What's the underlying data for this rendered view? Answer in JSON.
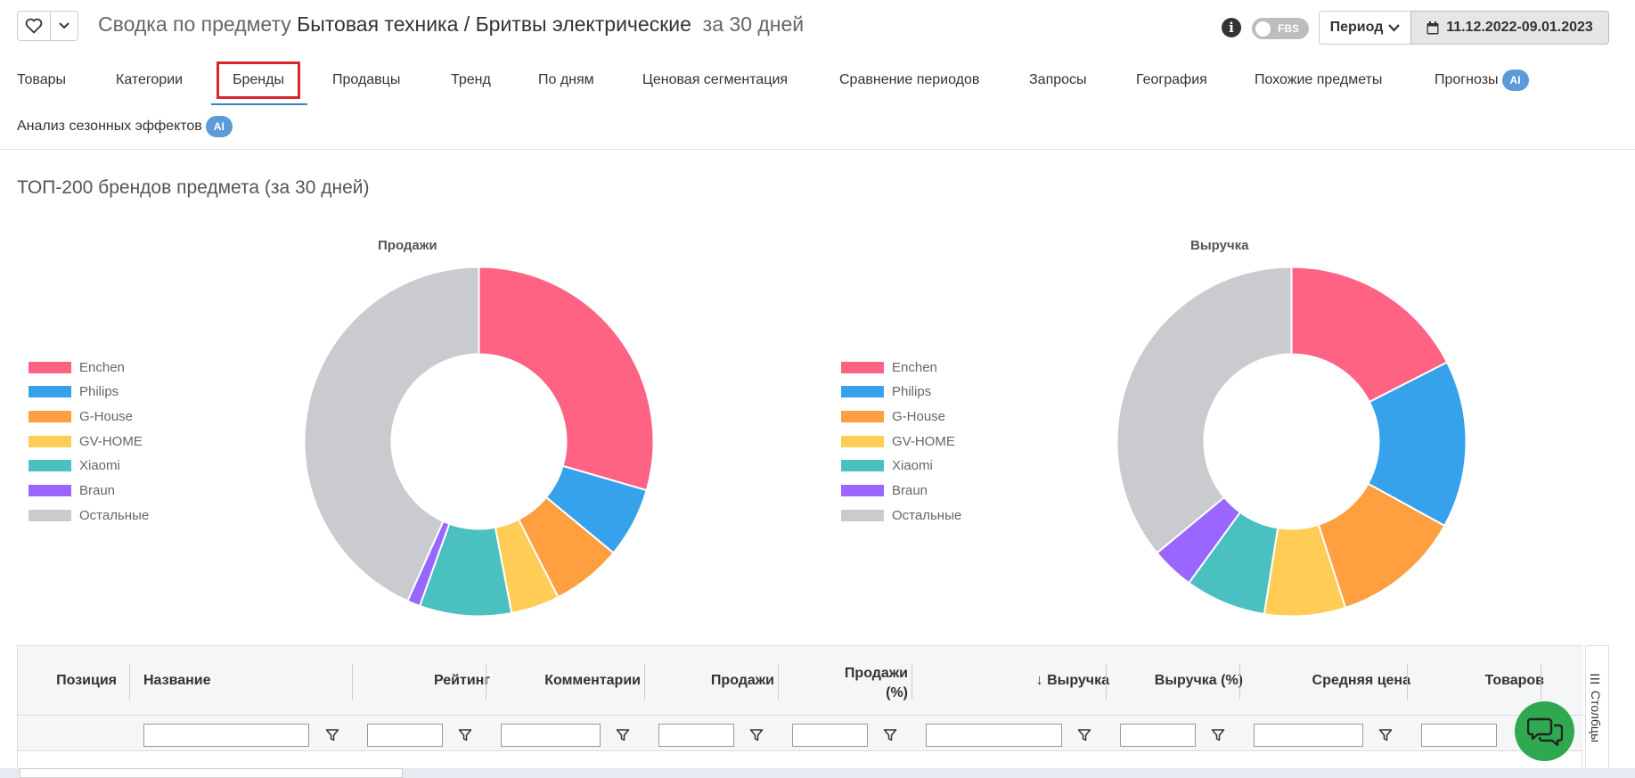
{
  "header": {
    "title_prefix": "Сводка по предмету",
    "subject": "Бытовая техника / Бритвы электрические",
    "title_suffix": "за 30 дней",
    "info_icon": "info-icon",
    "fbs_label": "FBS",
    "period_label": "Период",
    "date_range": "11.12.2022-09.01.2023"
  },
  "tabs": [
    {
      "label": "Товары"
    },
    {
      "label": "Категории"
    },
    {
      "label": "Бренды",
      "active": true
    },
    {
      "label": "Продавцы"
    },
    {
      "label": "Тренд"
    },
    {
      "label": "По дням"
    },
    {
      "label": "Ценовая сегментация"
    },
    {
      "label": "Сравнение периодов"
    },
    {
      "label": "Запросы"
    },
    {
      "label": "География"
    },
    {
      "label": "Похожие предметы"
    },
    {
      "label": "Прогнозы",
      "badge": "AI"
    },
    {
      "label": "Анализ сезонных эффектов",
      "badge": "AI"
    }
  ],
  "section_title": "ТОП-200 брендов предмета (за 30 дней)",
  "colors": {
    "Enchen": "#ff6384",
    "Philips": "#36a2eb",
    "G-House": "#ff9f40",
    "GV-HOME": "#ffcd56",
    "Xiaomi": "#4bc0c0",
    "Braun": "#9966ff",
    "Остальные": "#c9cbcf"
  },
  "chart_data": [
    {
      "type": "pie",
      "title": "Продажи",
      "categories": [
        "Enchen",
        "Philips",
        "G-House",
        "GV-HOME",
        "Xiaomi",
        "Braun",
        "Остальные"
      ],
      "values": [
        29.5,
        6.5,
        6.5,
        4.5,
        8.5,
        1.2,
        43.3
      ],
      "legend": "left"
    },
    {
      "type": "pie",
      "title": "Выручка",
      "categories": [
        "Enchen",
        "Philips",
        "G-House",
        "GV-HOME",
        "Xiaomi",
        "Braun",
        "Остальные"
      ],
      "values": [
        17.5,
        15.5,
        12.0,
        7.5,
        7.5,
        4.0,
        36.0
      ],
      "legend": "left"
    }
  ],
  "table": {
    "columns": [
      "Позиция",
      "Название",
      "Рейтинг",
      "Комментарии",
      "Продажи",
      "Продажи (%)",
      "↓ Выручка",
      "Выручка (%)",
      "Средняя цена",
      "Товаров"
    ],
    "columns_side_label": "Столбцы"
  }
}
